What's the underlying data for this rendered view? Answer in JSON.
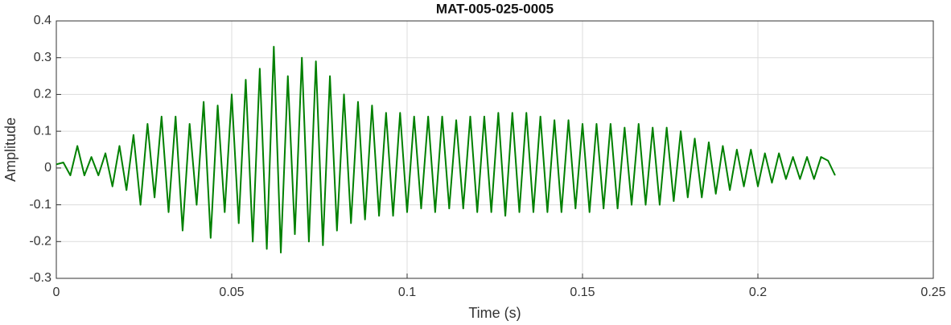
{
  "chart_data": {
    "type": "line",
    "title": "MAT-005-025-0005",
    "xlabel": "Time (s)",
    "ylabel": "Amplitude",
    "x": [
      0,
      0.002,
      0.004,
      0.006,
      0.008,
      0.01,
      0.012,
      0.014,
      0.016,
      0.018,
      0.02,
      0.022,
      0.024,
      0.026,
      0.028,
      0.03,
      0.032,
      0.034,
      0.036,
      0.038,
      0.04,
      0.042,
      0.044,
      0.046,
      0.048,
      0.05,
      0.052,
      0.054,
      0.056,
      0.058,
      0.06,
      0.062,
      0.064,
      0.066,
      0.068,
      0.07,
      0.072,
      0.074,
      0.076,
      0.078,
      0.08,
      0.082,
      0.084,
      0.086,
      0.088,
      0.09,
      0.092,
      0.094,
      0.096,
      0.098,
      0.1,
      0.102,
      0.104,
      0.106,
      0.108,
      0.11,
      0.112,
      0.114,
      0.116,
      0.118,
      0.12,
      0.122,
      0.124,
      0.126,
      0.128,
      0.13,
      0.132,
      0.134,
      0.136,
      0.138,
      0.14,
      0.142,
      0.144,
      0.146,
      0.148,
      0.15,
      0.152,
      0.154,
      0.156,
      0.158,
      0.16,
      0.162,
      0.164,
      0.166,
      0.168,
      0.17,
      0.172,
      0.174,
      0.176,
      0.178,
      0.18,
      0.182,
      0.184,
      0.186,
      0.188,
      0.19,
      0.192,
      0.194,
      0.196,
      0.198,
      0.2,
      0.202,
      0.204,
      0.206,
      0.208,
      0.21,
      0.212,
      0.214,
      0.216,
      0.218,
      0.22,
      0.222
    ],
    "series": [
      {
        "name": "Amplitude",
        "color": "#008000",
        "values": [
          0.01,
          0.015,
          -0.02,
          0.06,
          -0.02,
          0.03,
          -0.02,
          0.04,
          -0.05,
          0.06,
          -0.06,
          0.09,
          -0.1,
          0.12,
          -0.08,
          0.14,
          -0.12,
          0.14,
          -0.17,
          0.12,
          -0.1,
          0.18,
          -0.19,
          0.17,
          -0.12,
          0.2,
          -0.15,
          0.24,
          -0.2,
          0.27,
          -0.22,
          0.33,
          -0.23,
          0.25,
          -0.18,
          0.3,
          -0.2,
          0.29,
          -0.21,
          0.25,
          -0.17,
          0.2,
          -0.15,
          0.18,
          -0.14,
          0.17,
          -0.13,
          0.15,
          -0.13,
          0.15,
          -0.12,
          0.14,
          -0.11,
          0.14,
          -0.12,
          0.14,
          -0.11,
          0.13,
          -0.11,
          0.14,
          -0.12,
          0.14,
          -0.12,
          0.15,
          -0.13,
          0.15,
          -0.12,
          0.15,
          -0.12,
          0.14,
          -0.12,
          0.13,
          -0.12,
          0.13,
          -0.11,
          0.12,
          -0.12,
          0.12,
          -0.11,
          0.12,
          -0.11,
          0.11,
          -0.1,
          0.12,
          -0.1,
          0.11,
          -0.1,
          0.11,
          -0.09,
          0.1,
          -0.08,
          0.08,
          -0.08,
          0.07,
          -0.07,
          0.06,
          -0.06,
          0.05,
          -0.05,
          0.05,
          -0.05,
          0.04,
          -0.04,
          0.04,
          -0.03,
          0.03,
          -0.03,
          0.03,
          -0.03,
          0.03,
          0.02,
          -0.02
        ]
      }
    ],
    "xlim": [
      0,
      0.25
    ],
    "xticks": [
      0,
      0.05,
      0.1,
      0.15,
      0.2,
      0.25
    ],
    "ylim": [
      -0.3,
      0.4
    ],
    "yticks": [
      -0.3,
      -0.2,
      -0.1,
      0,
      0.1,
      0.2,
      0.3,
      0.4
    ],
    "grid": true
  }
}
